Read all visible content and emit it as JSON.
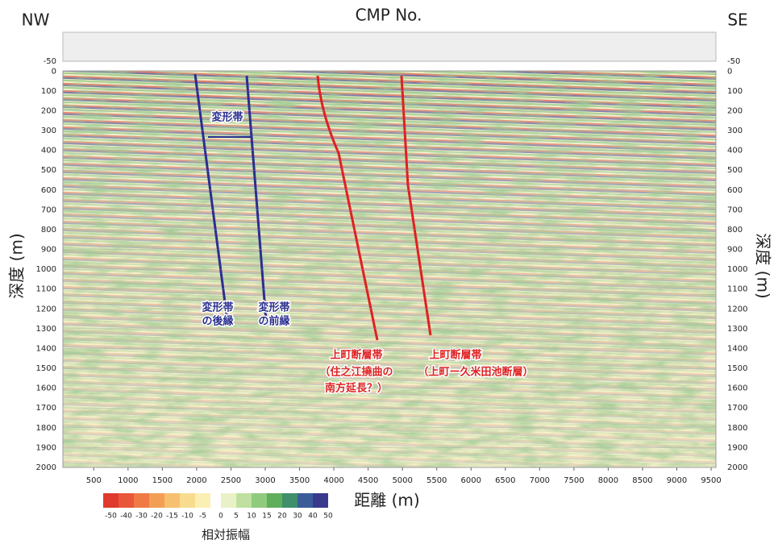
{
  "chart_data": {
    "type": "seismic",
    "title": "CMP No.",
    "left_label": "NW",
    "right_label": "SE",
    "x_label": "距離 (m)",
    "y_label": "深度 (m)",
    "xlim": [
      50,
      9570
    ],
    "xticks": [
      500,
      1000,
      1500,
      2000,
      2500,
      3000,
      3500,
      4000,
      4500,
      5000,
      5500,
      6000,
      6500,
      7000,
      7500,
      8000,
      8500,
      9000,
      9500
    ],
    "ylim": [
      2000,
      -50
    ],
    "yticks": [
      -50,
      0,
      100,
      200,
      300,
      400,
      500,
      600,
      700,
      800,
      900,
      1000,
      1100,
      1200,
      1300,
      1400,
      1500,
      1600,
      1700,
      1800,
      1900,
      2000
    ],
    "colorbar": {
      "label": "相対振幅",
      "ticks": [
        -50,
        -40,
        -30,
        -20,
        -15,
        -10,
        -5,
        0,
        5,
        10,
        15,
        20,
        30,
        40,
        50
      ],
      "colors": [
        "#e03a2f",
        "#e9573a",
        "#ef7a45",
        "#f39e55",
        "#f6c070",
        "#f8dc8e",
        "#fbefb3",
        "#e9f2c6",
        "#bfe0a0",
        "#8fcb7c",
        "#5fae5c",
        "#3f8f6a",
        "#3a5d9a",
        "#3a3a8c"
      ]
    },
    "annotations": [
      "変形帯",
      "変形帯",
      "の後縁",
      "変形帯",
      "の前縁",
      "上町断層帯",
      "（住之江撓曲の",
      "南方延長？）",
      "上町断層帯",
      "（上町ー久米田池断層）"
    ]
  }
}
